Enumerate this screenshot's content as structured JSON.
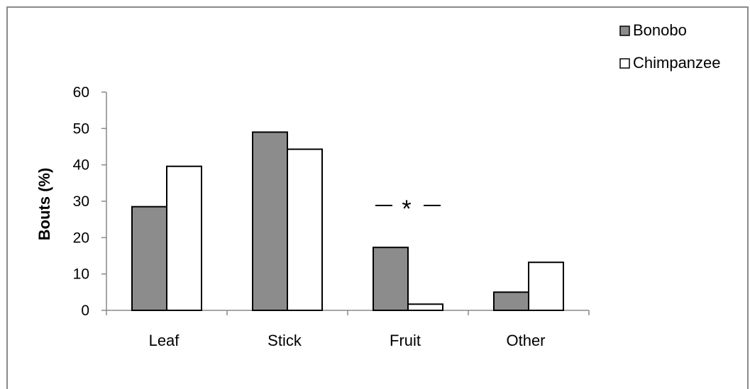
{
  "chart_data": {
    "type": "bar",
    "categories": [
      "Leaf",
      "Stick",
      "Fruit",
      "Other"
    ],
    "series": [
      {
        "name": "Bonobo",
        "values": [
          28.5,
          49,
          17.3,
          5
        ],
        "color": "#8c8c8c"
      },
      {
        "name": "Chimpanzee",
        "values": [
          39.6,
          44.3,
          1.7,
          13.2
        ],
        "color": "#ffffff"
      }
    ],
    "ylabel": "Bouts (%)",
    "xlabel": "",
    "ylim": [
      0,
      60
    ],
    "yticks": [
      0,
      10,
      20,
      30,
      40,
      50,
      60
    ],
    "grid": false,
    "legend_position": "top-right",
    "annotations": [
      {
        "text": "*",
        "category": "Fruit"
      }
    ]
  }
}
